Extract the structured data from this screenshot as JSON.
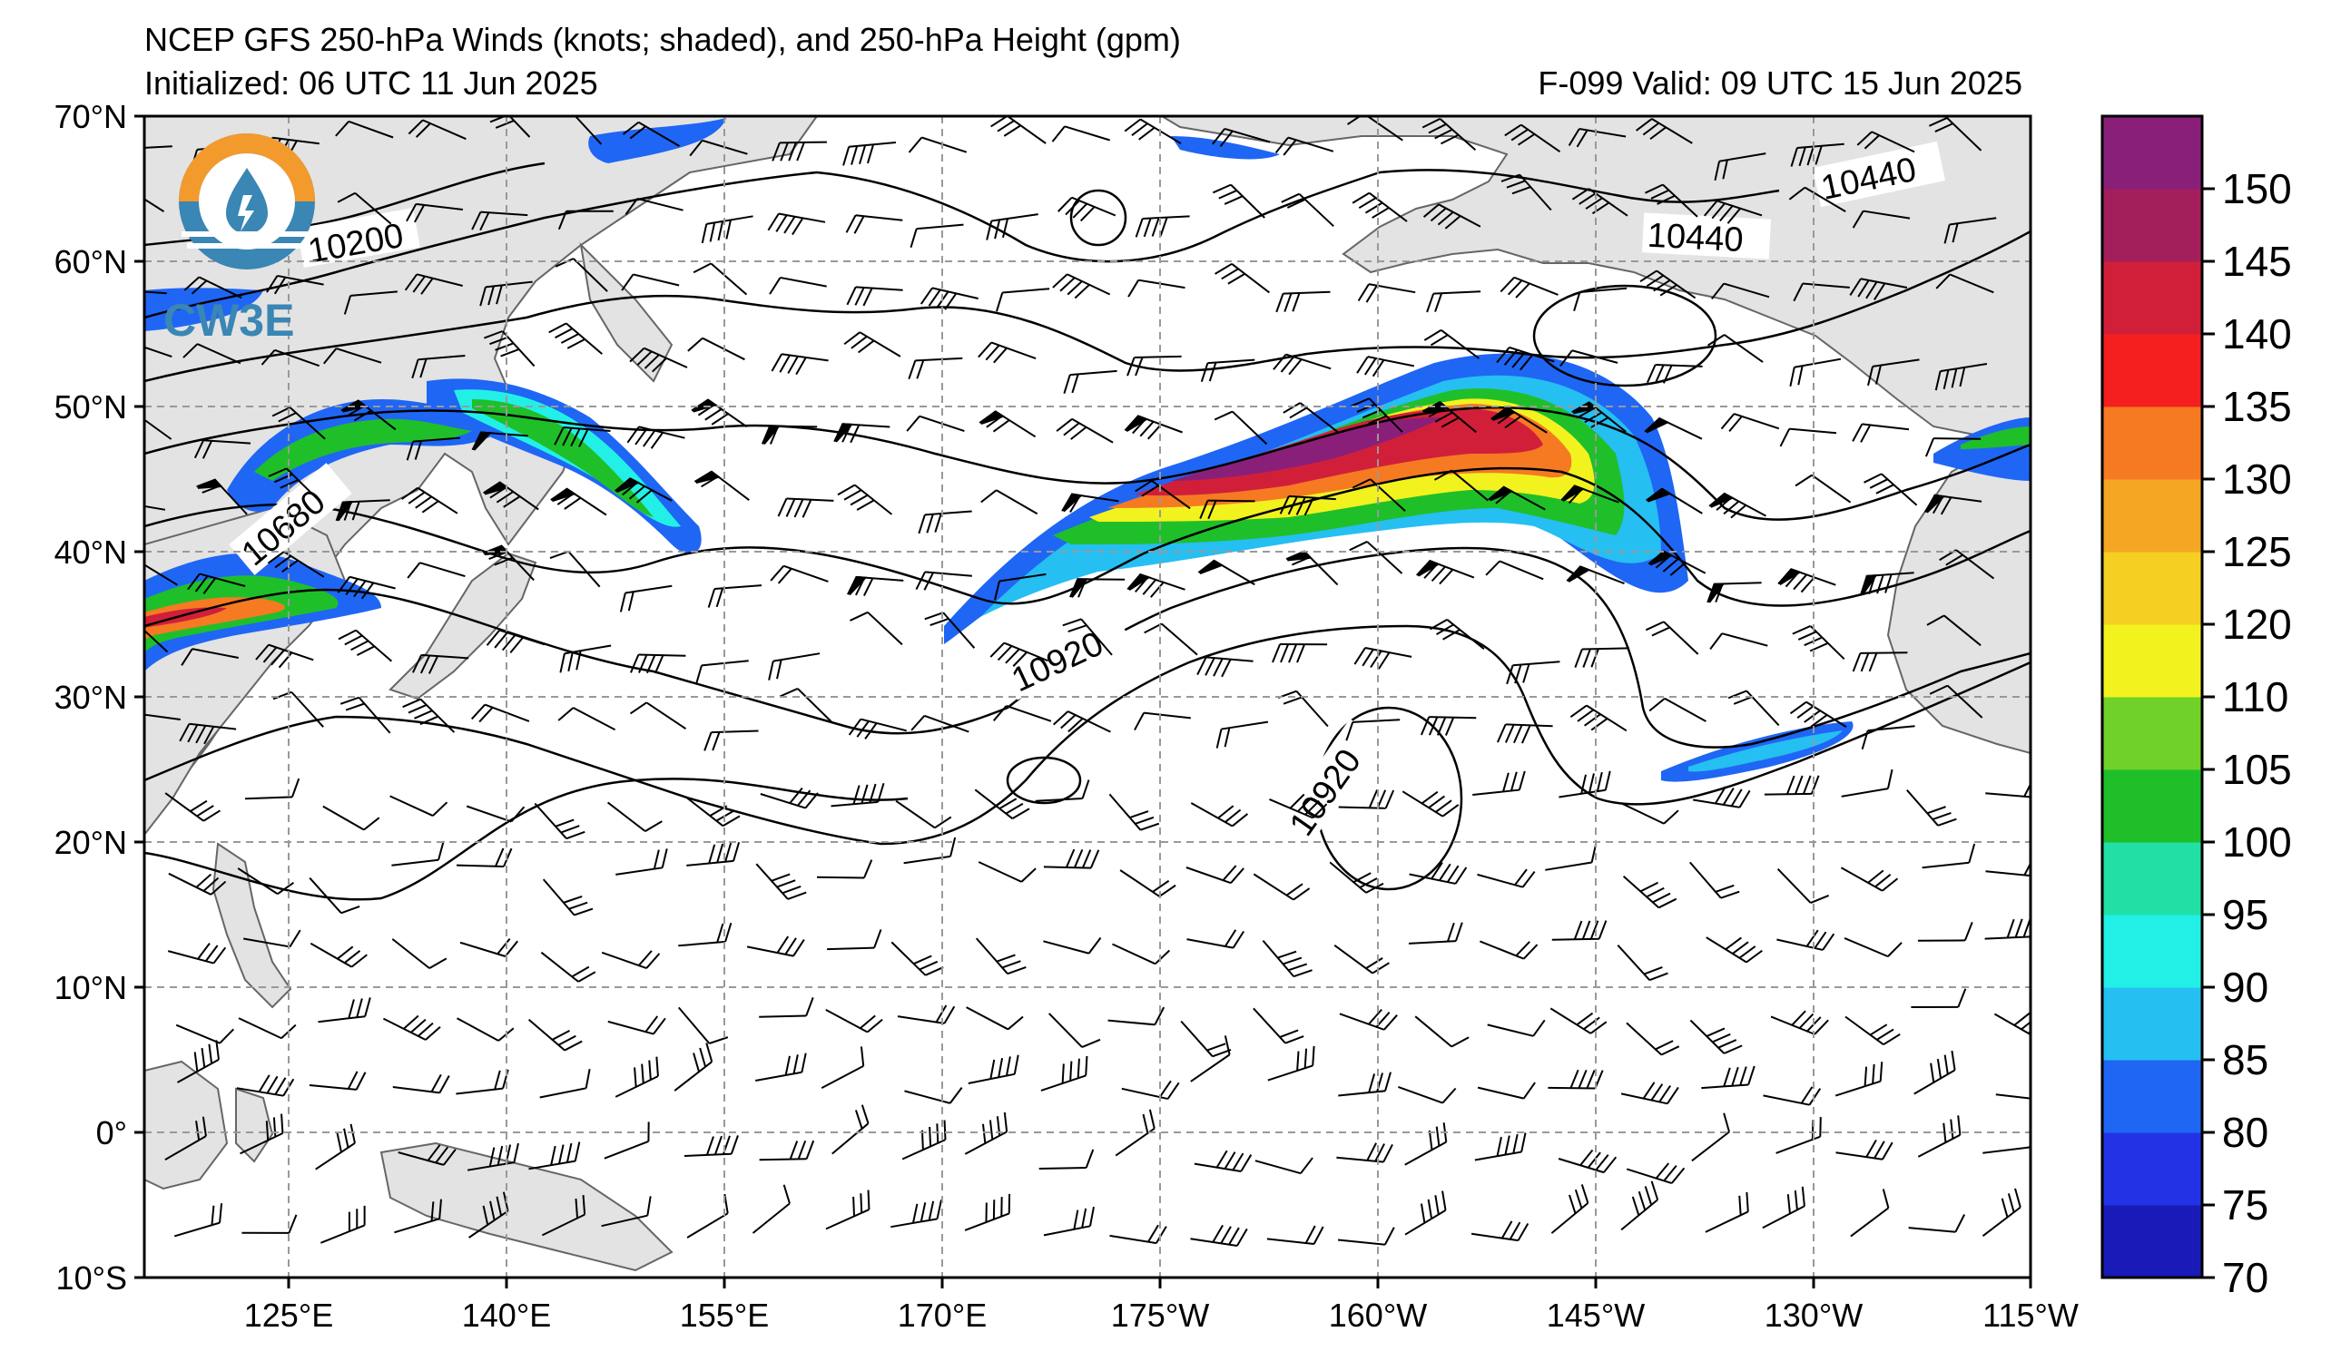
{
  "title_line1": "NCEP GFS 250-hPa Winds (knots; shaded), and 250-hPa Height (gpm)",
  "init_label": "Initialized: 06 UTC 11 Jun 2025",
  "valid_label": "F-099  Valid: 09 UTC 15 Jun 2025",
  "logo_text": "CW3E",
  "lat_labels": [
    "70°N",
    "60°N",
    "50°N",
    "40°N",
    "30°N",
    "20°N",
    "10°N",
    "0°",
    "10°S"
  ],
  "lon_labels": [
    "125°E",
    "140°E",
    "155°E",
    "170°E",
    "175°W",
    "160°W",
    "145°W",
    "130°W",
    "115°W"
  ],
  "colorbar": {
    "ticks": [
      "70",
      "75",
      "80",
      "85",
      "90",
      "95",
      "100",
      "105",
      "110",
      "120",
      "125",
      "130",
      "135",
      "140",
      "145",
      "150"
    ],
    "colors": [
      "#1a1ab8",
      "#2233e6",
      "#1f66f5",
      "#25bff2",
      "#22f0e6",
      "#22dfa6",
      "#1fbf2a",
      "#6fd12a",
      "#f2f21f",
      "#f5cf22",
      "#f5a622",
      "#f57a22",
      "#f51f1f",
      "#d11f3a",
      "#a31f5c",
      "#8a1f7a"
    ]
  },
  "contour_labels": [
    "10200",
    "10440",
    "10440",
    "10680",
    "10920",
    "10920"
  ],
  "colors": {
    "land": "#e3e3e3",
    "coast": "#666666",
    "grid": "#999999",
    "contour": "#000000"
  }
}
